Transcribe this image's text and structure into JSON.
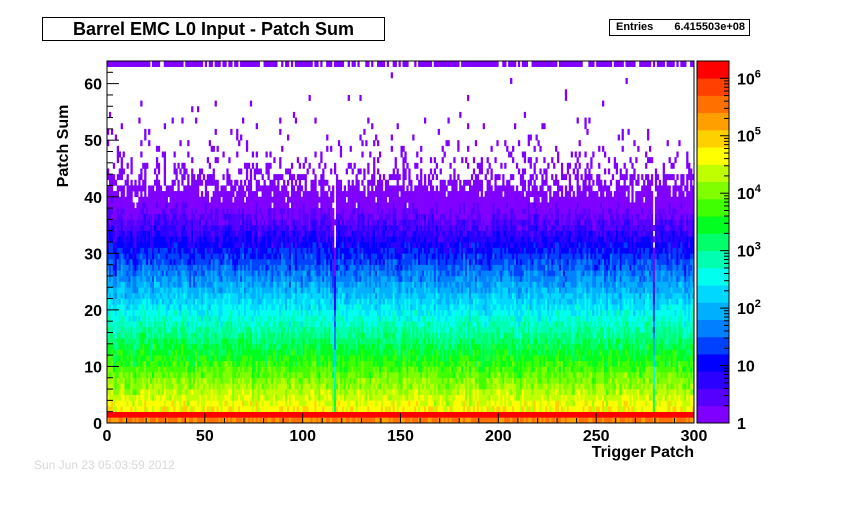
{
  "title": "Barrel EMC L0 Input - Patch Sum",
  "stats": {
    "label": "Entries",
    "value": "6.415503e+08"
  },
  "footer_timestamp": "Sun Jun 23 05:03:59 2012",
  "chart_data": {
    "type": "heatmap",
    "title": "Barrel EMC L0 Input - Patch Sum",
    "xlabel": "Trigger Patch",
    "ylabel": "Patch Sum",
    "xlim": [
      0,
      300
    ],
    "ylim": [
      0,
      64
    ],
    "x_ticks": [
      "0",
      "50",
      "100",
      "150",
      "200",
      "250",
      "300"
    ],
    "y_ticks": [
      "0",
      "10",
      "20",
      "30",
      "40",
      "50",
      "60"
    ],
    "z_scale": "log",
    "z_range": [
      1,
      2000000
    ],
    "z_ticks": [
      "1",
      "10",
      "10^2",
      "10^3",
      "10^4",
      "10^5",
      "10^6"
    ],
    "n_bins_x": 300,
    "n_bins_y": 64,
    "entries": 641550300,
    "palette": [
      "#7f00ff",
      "#5500ff",
      "#2b00ff",
      "#0000ff",
      "#0040ff",
      "#0080ff",
      "#00b0ff",
      "#00d8ff",
      "#00ffee",
      "#00ffb0",
      "#00ff6a",
      "#00ff20",
      "#40ff00",
      "#80ff00",
      "#c0ff00",
      "#ffff00",
      "#ffd000",
      "#ffa000",
      "#ff7000",
      "#ff4000",
      "#ff0000"
    ],
    "column_profile_description": "pedestal row 0-1 ~1e6 (red), falling ~exponentially to ~1 count near patch sum 40, sparse entries up to 63",
    "dim_columns": [
      116,
      279
    ]
  }
}
